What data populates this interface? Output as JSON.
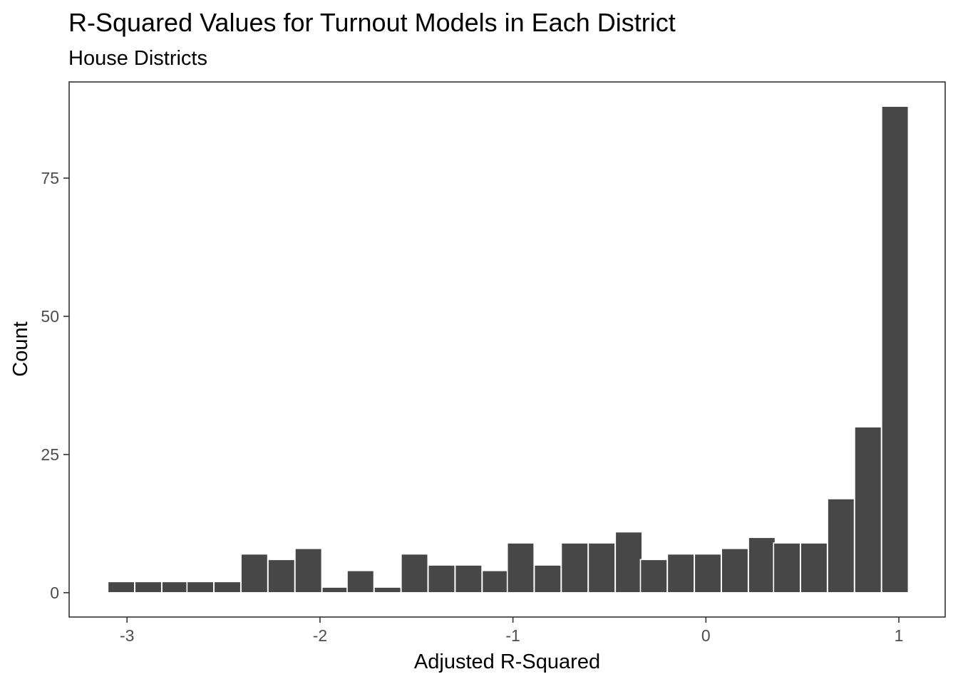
{
  "chart_data": {
    "type": "bar",
    "title": "R-Squared Values for Turnout Models in Each District",
    "subtitle": "House Districts",
    "xlabel": "Adjusted R-Squared",
    "ylabel": "Count",
    "x_ticks": [
      {
        "value": -3,
        "label": "-3"
      },
      {
        "value": -2,
        "label": "-2"
      },
      {
        "value": -1,
        "label": "-1"
      },
      {
        "value": 0,
        "label": "0"
      },
      {
        "value": 1,
        "label": "1"
      }
    ],
    "y_ticks": [
      {
        "value": 0,
        "label": "0"
      },
      {
        "value": 25,
        "label": "25"
      },
      {
        "value": 50,
        "label": "50"
      },
      {
        "value": 75,
        "label": "75"
      }
    ],
    "xlim": [
      -3.3,
      1.24
    ],
    "ylim": [
      -4.4,
      92.4
    ],
    "bin_width": 0.1385,
    "bins": [
      {
        "center": -3.03,
        "count": 2
      },
      {
        "center": -2.89,
        "count": 2
      },
      {
        "center": -2.75,
        "count": 2
      },
      {
        "center": -2.62,
        "count": 2
      },
      {
        "center": -2.48,
        "count": 2
      },
      {
        "center": -2.34,
        "count": 7
      },
      {
        "center": -2.2,
        "count": 6
      },
      {
        "center": -2.06,
        "count": 8
      },
      {
        "center": -1.92,
        "count": 1
      },
      {
        "center": -1.79,
        "count": 4
      },
      {
        "center": -1.65,
        "count": 1
      },
      {
        "center": -1.51,
        "count": 7
      },
      {
        "center": -1.37,
        "count": 5
      },
      {
        "center": -1.23,
        "count": 5
      },
      {
        "center": -1.09,
        "count": 4
      },
      {
        "center": -0.96,
        "count": 9
      },
      {
        "center": -0.82,
        "count": 5
      },
      {
        "center": -0.68,
        "count": 9
      },
      {
        "center": -0.54,
        "count": 9
      },
      {
        "center": -0.4,
        "count": 11
      },
      {
        "center": -0.27,
        "count": 6
      },
      {
        "center": -0.13,
        "count": 7
      },
      {
        "center": 0.01,
        "count": 7
      },
      {
        "center": 0.15,
        "count": 8
      },
      {
        "center": 0.29,
        "count": 10
      },
      {
        "center": 0.42,
        "count": 9
      },
      {
        "center": 0.56,
        "count": 9
      },
      {
        "center": 0.7,
        "count": 17
      },
      {
        "center": 0.84,
        "count": 30
      },
      {
        "center": 0.98,
        "count": 88
      }
    ],
    "grid": false,
    "bar_color": "#474747",
    "bar_outline_color": "#ffffff",
    "panel_border_color": "#333333",
    "tick_color": "#333333"
  }
}
